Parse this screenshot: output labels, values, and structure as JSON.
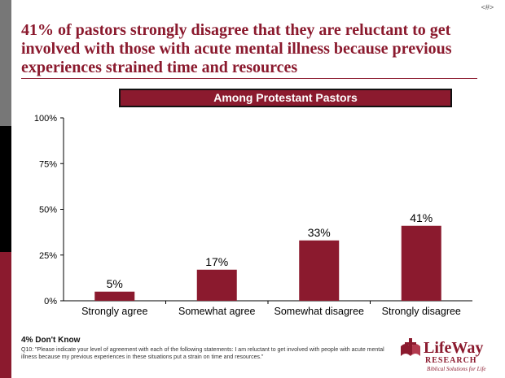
{
  "page_number": "<#>",
  "title": "41% of pastors strongly disagree that they are reluctant to get involved with those with acute mental illness because previous experiences strained time and resources",
  "subtitle": "Among Protestant Pastors",
  "colors": {
    "brand": "#8b1a2e",
    "bar": "#8b1a2e",
    "left_bar_gray": "#777777",
    "left_bar_black": "#000000"
  },
  "chart_data": {
    "type": "bar",
    "title": "",
    "xlabel": "",
    "ylabel": "",
    "categories": [
      "Strongly agree",
      "Somewhat agree",
      "Somewhat disagree",
      "Strongly disagree"
    ],
    "values": [
      5,
      17,
      33,
      41
    ],
    "data_labels": [
      "5%",
      "17%",
      "33%",
      "41%"
    ],
    "ylim": [
      0,
      100
    ],
    "yticks": [
      0,
      25,
      50,
      75,
      100
    ],
    "ytick_labels": [
      "0%",
      "25%",
      "50%",
      "75%",
      "100%"
    ],
    "grid": false,
    "legend": "none"
  },
  "footer": {
    "dont_know": "4% Don't Know",
    "question": "Q10: \"Please indicate your level of agreement with each of the following statements: I am reluctant to get involved with people with acute mental illness because my previous experiences in these situations put a strain on time and resources.\""
  },
  "logo": {
    "name": "LifeWay",
    "sub": "RESEARCH",
    "tagline": "Biblical Solutions for Life",
    "icon": "cross-book-icon"
  }
}
